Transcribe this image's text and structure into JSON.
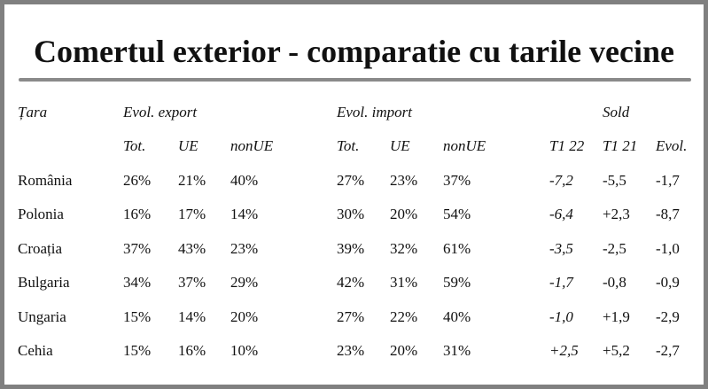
{
  "title": "Comertul exterior - comparatie cu tarile vecine",
  "headers": {
    "country": "Țara",
    "export_group": "Evol. export",
    "import_group": "Evol. import",
    "sold_group": "Sold",
    "sub": {
      "exp_tot": "Tot.",
      "exp_ue": "UE",
      "exp_nonue": "nonUE",
      "imp_tot": "Tot.",
      "imp_ue": "UE",
      "imp_nonue": "nonUE",
      "t1_22": "T1 22",
      "t1_21": "T1 21",
      "evol": "Evol."
    }
  },
  "rows": [
    {
      "country": "România",
      "exp_tot": "26%",
      "exp_ue": "21%",
      "exp_nonue": "40%",
      "imp_tot": "27%",
      "imp_ue": "23%",
      "imp_nonue": "37%",
      "t1_22": "-7,2",
      "t1_21": "-5,5",
      "evol": "-1,7"
    },
    {
      "country": "Polonia",
      "exp_tot": "16%",
      "exp_ue": "17%",
      "exp_nonue": "14%",
      "imp_tot": "30%",
      "imp_ue": "20%",
      "imp_nonue": "54%",
      "t1_22": "-6,4",
      "t1_21": "+2,3",
      "evol": "-8,7"
    },
    {
      "country": "Croația",
      "exp_tot": "37%",
      "exp_ue": "43%",
      "exp_nonue": "23%",
      "imp_tot": "39%",
      "imp_ue": "32%",
      "imp_nonue": "61%",
      "t1_22": "-3,5",
      "t1_21": "-2,5",
      "evol": "-1,0"
    },
    {
      "country": "Bulgaria",
      "exp_tot": "34%",
      "exp_ue": "37%",
      "exp_nonue": "29%",
      "imp_tot": "42%",
      "imp_ue": "31%",
      "imp_nonue": "59%",
      "t1_22": "-1,7",
      "t1_21": "-0,8",
      "evol": "-0,9"
    },
    {
      "country": "Ungaria",
      "exp_tot": "15%",
      "exp_ue": "14%",
      "exp_nonue": "20%",
      "imp_tot": "27%",
      "imp_ue": "22%",
      "imp_nonue": "40%",
      "t1_22": "-1,0",
      "t1_21": "+1,9",
      "evol": "-2,9"
    },
    {
      "country": "Cehia",
      "exp_tot": "15%",
      "exp_ue": "16%",
      "exp_nonue": "10%",
      "imp_tot": "23%",
      "imp_ue": "20%",
      "imp_nonue": "31%",
      "t1_22": "+2,5",
      "t1_21": "+5,2",
      "evol": "-2,7"
    }
  ],
  "colors": {
    "frame": "#808080",
    "rule": "#8a8a8a",
    "text": "#111111"
  }
}
